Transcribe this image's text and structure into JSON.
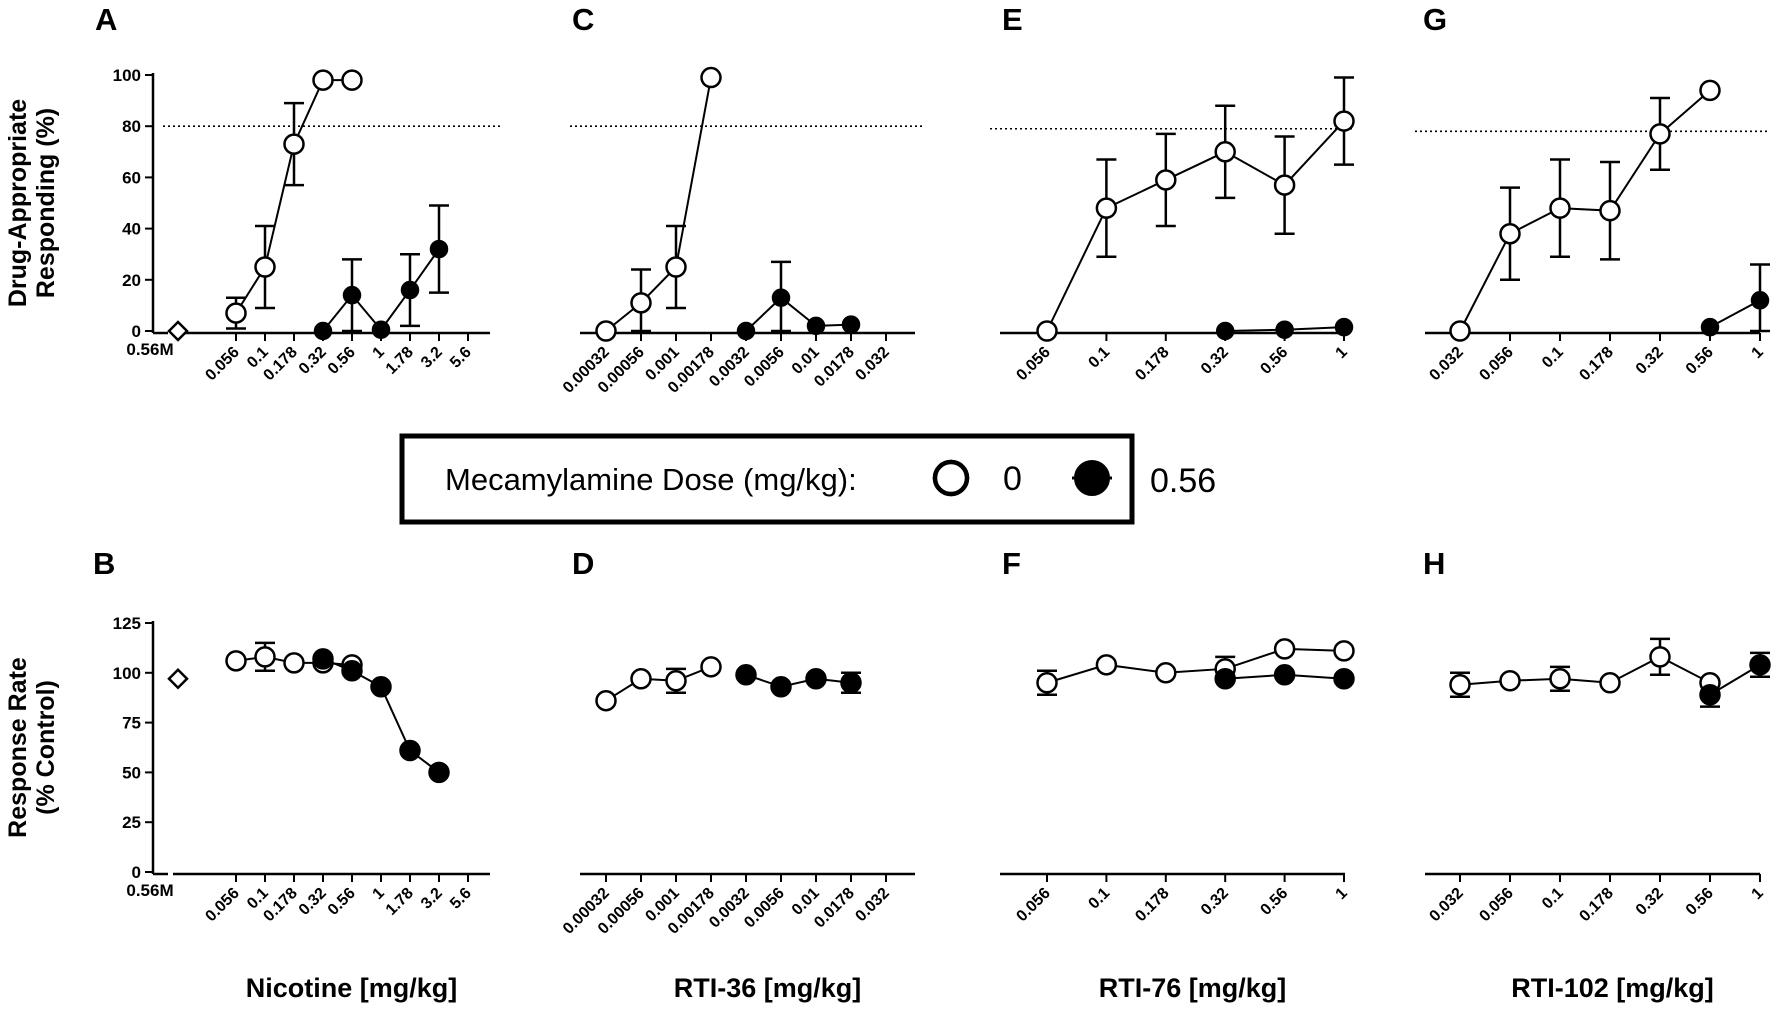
{
  "chart_data": [
    {
      "id": "A",
      "type": "line",
      "letter": "A",
      "ylabel": [
        "Drug-Appropriate",
        "Responding (%)"
      ],
      "ylim": [
        0,
        100
      ],
      "yticks": [
        0,
        20,
        40,
        60,
        80,
        100
      ],
      "reference_line": 80,
      "x_categories": [
        "0.056",
        "0.1",
        "0.178",
        "0.32",
        "0.56",
        "1",
        "1.78",
        "3.2",
        "5.6"
      ],
      "control_label": "0.56M",
      "control_point": {
        "y": 0
      },
      "series": [
        {
          "name": "0",
          "filled": false,
          "points": [
            {
              "x": "0.056",
              "y": 7,
              "err": 6
            },
            {
              "x": "0.1",
              "y": 25,
              "err": 16
            },
            {
              "x": "0.178",
              "y": 73,
              "err": 16
            },
            {
              "x": "0.32",
              "y": 98
            },
            {
              "x": "0.56",
              "y": 98
            }
          ]
        },
        {
          "name": "0.56",
          "filled": true,
          "points": [
            {
              "x": "0.32",
              "y": 0
            },
            {
              "x": "0.56",
              "y": 14,
              "err": 14
            },
            {
              "x": "1",
              "y": 0.5
            },
            {
              "x": "1.78",
              "y": 16,
              "err": 14
            },
            {
              "x": "3.2",
              "y": 32,
              "err": 17
            }
          ]
        }
      ]
    },
    {
      "id": "B",
      "type": "line",
      "letter": "B",
      "ylabel": [
        "Response Rate",
        "(% Control)"
      ],
      "ylim": [
        0,
        125
      ],
      "yticks": [
        0,
        25,
        50,
        75,
        100,
        125
      ],
      "x_categories": [
        "0.056",
        "0.1",
        "0.178",
        "0.32",
        "0.56",
        "1",
        "1.78",
        "3.2",
        "5.6"
      ],
      "control_label": "0.56M",
      "control_point": {
        "y": 97
      },
      "xlabel": "Nicotine [mg/kg]",
      "series": [
        {
          "name": "0",
          "filled": false,
          "points": [
            {
              "x": "0.056",
              "y": 106
            },
            {
              "x": "0.1",
              "y": 108,
              "err": 7
            },
            {
              "x": "0.178",
              "y": 105
            },
            {
              "x": "0.32",
              "y": 105
            },
            {
              "x": "0.56",
              "y": 104
            }
          ]
        },
        {
          "name": "0.56",
          "filled": true,
          "points": [
            {
              "x": "0.32",
              "y": 107
            },
            {
              "x": "0.56",
              "y": 101
            },
            {
              "x": "1",
              "y": 93
            },
            {
              "x": "1.78",
              "y": 61
            },
            {
              "x": "3.2",
              "y": 50
            }
          ]
        }
      ]
    },
    {
      "id": "C",
      "type": "line",
      "letter": "C",
      "ylim": [
        0,
        100
      ],
      "reference_line": 80,
      "x_categories": [
        "0.00032",
        "0.00056",
        "0.001",
        "0.00178",
        "0.0032",
        "0.0056",
        "0.01",
        "0.0178",
        "0.032"
      ],
      "series": [
        {
          "name": "0",
          "filled": false,
          "points": [
            {
              "x": "0.00032",
              "y": 0
            },
            {
              "x": "0.00056",
              "y": 11,
              "err": 13
            },
            {
              "x": "0.001",
              "y": 25,
              "err": 16
            },
            {
              "x": "0.00178",
              "y": 99
            }
          ]
        },
        {
          "name": "0.56",
          "filled": true,
          "points": [
            {
              "x": "0.0032",
              "y": 0
            },
            {
              "x": "0.0056",
              "y": 13,
              "err": 14
            },
            {
              "x": "0.01",
              "y": 2
            },
            {
              "x": "0.0178",
              "y": 2.5
            }
          ]
        }
      ]
    },
    {
      "id": "D",
      "type": "line",
      "letter": "D",
      "ylim": [
        0,
        125
      ],
      "x_categories": [
        "0.00032",
        "0.00056",
        "0.001",
        "0.00178",
        "0.0032",
        "0.0056",
        "0.01",
        "0.0178",
        "0.032"
      ],
      "xlabel": "RTI-36 [mg/kg]",
      "series": [
        {
          "name": "0",
          "filled": false,
          "points": [
            {
              "x": "0.00032",
              "y": 86
            },
            {
              "x": "0.00056",
              "y": 97
            },
            {
              "x": "0.001",
              "y": 96,
              "err": 6
            },
            {
              "x": "0.00178",
              "y": 103
            }
          ]
        },
        {
          "name": "0.56",
          "filled": true,
          "points": [
            {
              "x": "0.0032",
              "y": 99
            },
            {
              "x": "0.0056",
              "y": 93
            },
            {
              "x": "0.01",
              "y": 97
            },
            {
              "x": "0.0178",
              "y": 95,
              "err": 5
            }
          ]
        }
      ]
    },
    {
      "id": "E",
      "type": "line",
      "letter": "E",
      "ylim": [
        0,
        100
      ],
      "reference_line": 79,
      "x_categories": [
        "0.056",
        "0.1",
        "0.178",
        "0.32",
        "0.56",
        "1"
      ],
      "series": [
        {
          "name": "0",
          "filled": false,
          "points": [
            {
              "x": "0.056",
              "y": 0
            },
            {
              "x": "0.1",
              "y": 48,
              "err": 19
            },
            {
              "x": "0.178",
              "y": 59,
              "err": 18
            },
            {
              "x": "0.32",
              "y": 70,
              "err": 18
            },
            {
              "x": "0.56",
              "y": 57,
              "err": 19
            },
            {
              "x": "1",
              "y": 82,
              "err": 17
            }
          ]
        },
        {
          "name": "0.56",
          "filled": true,
          "points": [
            {
              "x": "0.32",
              "y": 0
            },
            {
              "x": "0.56",
              "y": 0.5
            },
            {
              "x": "1",
              "y": 1.5
            }
          ]
        }
      ]
    },
    {
      "id": "F",
      "type": "line",
      "letter": "F",
      "ylim": [
        0,
        125
      ],
      "x_categories": [
        "0.056",
        "0.1",
        "0.178",
        "0.32",
        "0.56",
        "1"
      ],
      "xlabel": "RTI-76 [mg/kg]",
      "series": [
        {
          "name": "0",
          "filled": false,
          "points": [
            {
              "x": "0.056",
              "y": 95,
              "err": 6
            },
            {
              "x": "0.1",
              "y": 104
            },
            {
              "x": "0.178",
              "y": 100
            },
            {
              "x": "0.32",
              "y": 102,
              "err": 6
            },
            {
              "x": "0.56",
              "y": 112
            },
            {
              "x": "1",
              "y": 111
            }
          ]
        },
        {
          "name": "0.56",
          "filled": true,
          "points": [
            {
              "x": "0.32",
              "y": 97
            },
            {
              "x": "0.56",
              "y": 99
            },
            {
              "x": "1",
              "y": 97
            }
          ]
        }
      ]
    },
    {
      "id": "G",
      "type": "line",
      "letter": "G",
      "ylim": [
        0,
        100
      ],
      "reference_line": 78,
      "x_categories": [
        "0.032",
        "0.056",
        "0.1",
        "0.178",
        "0.32",
        "0.56",
        "1"
      ],
      "series": [
        {
          "name": "0",
          "filled": false,
          "points": [
            {
              "x": "0.032",
              "y": 0
            },
            {
              "x": "0.056",
              "y": 38,
              "err": 18
            },
            {
              "x": "0.1",
              "y": 48,
              "err": 19
            },
            {
              "x": "0.178",
              "y": 47,
              "err": 19
            },
            {
              "x": "0.32",
              "y": 77,
              "err": 14
            },
            {
              "x": "0.56",
              "y": 94
            }
          ]
        },
        {
          "name": "0.56",
          "filled": true,
          "points": [
            {
              "x": "0.56",
              "y": 1.5
            },
            {
              "x": "1",
              "y": 12,
              "err": 14
            }
          ]
        }
      ]
    },
    {
      "id": "H",
      "type": "line",
      "letter": "H",
      "ylim": [
        0,
        125
      ],
      "x_categories": [
        "0.032",
        "0.056",
        "0.1",
        "0.178",
        "0.32",
        "0.56",
        "1"
      ],
      "xlabel": "RTI-102 [mg/kg]",
      "series": [
        {
          "name": "0",
          "filled": false,
          "points": [
            {
              "x": "0.032",
              "y": 94,
              "err": 6
            },
            {
              "x": "0.056",
              "y": 96
            },
            {
              "x": "0.1",
              "y": 97,
              "err": 6
            },
            {
              "x": "0.178",
              "y": 95
            },
            {
              "x": "0.32",
              "y": 108,
              "err": 9
            },
            {
              "x": "0.56",
              "y": 95
            }
          ]
        },
        {
          "name": "0.56",
          "filled": true,
          "points": [
            {
              "x": "0.56",
              "y": 89,
              "err": 6
            },
            {
              "x": "1",
              "y": 104,
              "err": 6
            }
          ]
        }
      ]
    }
  ],
  "legend": {
    "title": "Mecamylamine Dose (mg/kg):",
    "entries": [
      {
        "label": "0",
        "filled": false
      },
      {
        "label": "0.56",
        "filled": true
      }
    ]
  }
}
